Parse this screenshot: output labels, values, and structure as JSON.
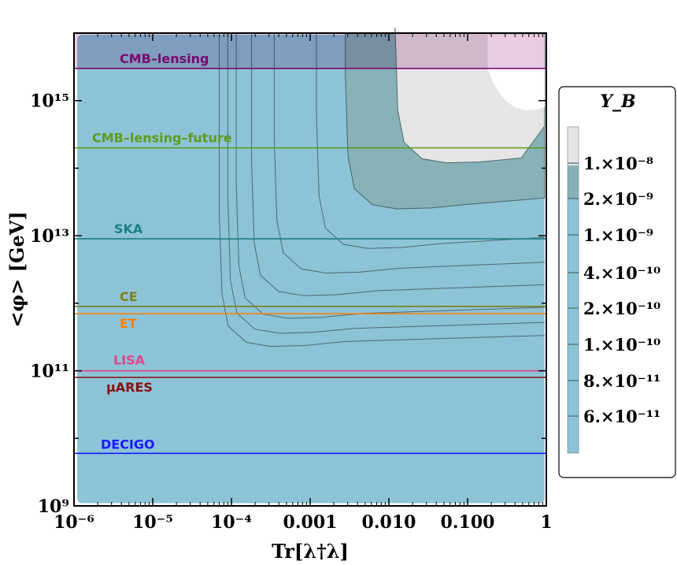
{
  "chart_data": {
    "type": "contour",
    "xlabel": "Tr[λ†λ]",
    "ylabel": "<φ> [GeV]",
    "x_scale": "log",
    "y_scale": "log",
    "xlim": [
      1e-06,
      1
    ],
    "ylim": [
      1000000000.0,
      1e+16
    ],
    "x_ticks": [
      {
        "value": 1e-06,
        "label": "10⁻⁶"
      },
      {
        "value": 1e-05,
        "label": "10⁻⁵"
      },
      {
        "value": 0.0001,
        "label": "10⁻⁴"
      },
      {
        "value": 0.001,
        "label": "0.001"
      },
      {
        "value": 0.01,
        "label": "0.010"
      },
      {
        "value": 0.1,
        "label": "0.100"
      },
      {
        "value": 1,
        "label": "1"
      }
    ],
    "y_ticks": [
      {
        "value": 1000000000.0,
        "label": "10⁹"
      },
      {
        "value": 100000000000.0,
        "label": "10¹¹"
      },
      {
        "value": 10000000000000.0,
        "label": "10¹³"
      },
      {
        "value": 1000000000000000.0,
        "label": "10¹⁵"
      }
    ],
    "colorbar": {
      "title": "Y_B",
      "levels": [
        "6.×10⁻¹¹",
        "8.×10⁻¹¹",
        "1.×10⁻¹⁰",
        "2.×10⁻¹⁰",
        "4.×10⁻¹⁰",
        "1.×10⁻⁹",
        "2.×10⁻⁹",
        "1.×10⁻⁸"
      ],
      "base_color": "#8cc3d7",
      "band_color": "#86b1b6",
      "top_color": "#e5e5e5"
    },
    "contours": [
      {
        "level": "6e-11",
        "x_min": 7e-05,
        "y_floor": 230000000000.0
      },
      {
        "level": "8e-11",
        "x_min": 9e-05,
        "y_floor": 360000000000.0
      },
      {
        "level": "1e-10",
        "x_min": 0.000115,
        "y_floor": 600000000000.0
      },
      {
        "level": "2e-10",
        "x_min": 0.00018,
        "y_floor": 1300000000000.0
      },
      {
        "level": "4e-10",
        "x_min": 0.00035,
        "y_floor": 2800000000000.0
      },
      {
        "level": "1e-9",
        "x_min": 0.0012,
        "y_floor": 6500000000000.0
      },
      {
        "level": "2e-9",
        "x_min": 0.0028,
        "y_floor": 25000000000000.0
      },
      {
        "level": "1e-8",
        "x_min": 0.012,
        "y_floor": 120000000000000.0
      }
    ],
    "excluded_region": {
      "name": "",
      "y_min": 3000000000000000.0,
      "color": "#e6c8df"
    },
    "lines": [
      {
        "name": "CMB–lensing",
        "y": 3000000000000000.0,
        "color": "#7a0a6e"
      },
      {
        "name": "CMB–lensing–future",
        "y": 200000000000000.0,
        "color": "#5e9c1a"
      },
      {
        "name": "SKA",
        "y": 9000000000000.0,
        "color": "#1a7f7f"
      },
      {
        "name": "CE",
        "y": 900000000000.0,
        "color": "#7f7f10"
      },
      {
        "name": "ET",
        "y": 700000000000.0,
        "color": "#ff8000"
      },
      {
        "name": "LISA",
        "y": 100000000000.0,
        "color": "#e0458c"
      },
      {
        "name": "μARES",
        "y": 80000000000.0,
        "color": "#8b0d0d"
      },
      {
        "name": "DECIGO",
        "y": 6000000000.0,
        "color": "#1a1aff"
      }
    ],
    "grid": false,
    "legend": "right colorbar"
  }
}
